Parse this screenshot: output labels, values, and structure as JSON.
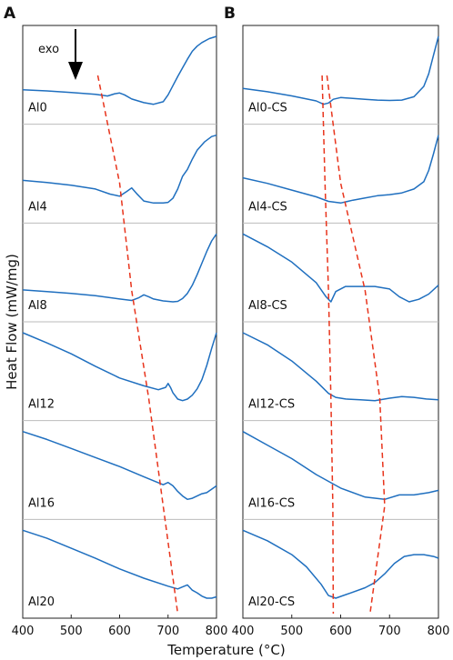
{
  "chart_data": [
    {
      "panel": "A",
      "type": "line",
      "xlabel": "Temperature (°C)",
      "ylabel": "Heat Flow (mW/mg)",
      "xlim": [
        400,
        800
      ],
      "xticks": [
        "400",
        "500",
        "600",
        "700",
        "800"
      ],
      "annotation": {
        "text": "exo",
        "arrow": "down"
      },
      "series": [
        {
          "name": "Al0",
          "x": [
            400,
            450,
            500,
            550,
            575,
            590,
            600,
            610,
            625,
            650,
            670,
            690,
            700,
            710,
            720,
            730,
            740,
            750,
            760,
            770,
            785,
            800
          ],
          "y": [
            0.72,
            0.67,
            0.6,
            0.52,
            0.45,
            0.55,
            0.58,
            0.5,
            0.32,
            0.16,
            0.09,
            0.2,
            0.5,
            0.9,
            1.3,
            1.68,
            2.05,
            2.4,
            2.62,
            2.78,
            2.95,
            3.05
          ]
        },
        {
          "name": "Al4",
          "x": [
            400,
            450,
            500,
            550,
            580,
            600,
            615,
            625,
            635,
            650,
            670,
            690,
            700,
            710,
            720,
            730,
            740,
            750,
            760,
            775,
            790,
            800
          ],
          "y": [
            0.7,
            0.64,
            0.56,
            0.45,
            0.3,
            0.24,
            0.38,
            0.48,
            0.32,
            0.1,
            0.04,
            0.04,
            0.06,
            0.18,
            0.45,
            0.82,
            1.02,
            1.32,
            1.58,
            1.82,
            1.98,
            2.02
          ]
        },
        {
          "name": "Al8",
          "x": [
            400,
            450,
            500,
            550,
            600,
            625,
            640,
            650,
            660,
            670,
            690,
            710,
            720,
            730,
            740,
            750,
            760,
            770,
            780,
            790,
            800
          ],
          "y": [
            0.55,
            0.48,
            0.4,
            0.3,
            0.16,
            0.1,
            0.22,
            0.34,
            0.26,
            0.16,
            0.08,
            0.04,
            0.06,
            0.18,
            0.4,
            0.75,
            1.2,
            1.7,
            2.2,
            2.65,
            2.95
          ]
        },
        {
          "name": "Al12",
          "x": [
            400,
            450,
            500,
            550,
            600,
            650,
            680,
            695,
            700,
            705,
            710,
            720,
            730,
            740,
            750,
            760,
            770,
            780,
            790,
            800
          ],
          "y": [
            0.75,
            0.62,
            0.48,
            0.32,
            0.17,
            0.07,
            0.02,
            0.05,
            0.1,
            0.05,
            -0.02,
            -0.1,
            -0.12,
            -0.1,
            -0.05,
            0.03,
            0.15,
            0.33,
            0.55,
            0.75
          ]
        },
        {
          "name": "Al16",
          "x": [
            400,
            450,
            500,
            550,
            600,
            650,
            690,
            700,
            710,
            720,
            730,
            740,
            750,
            760,
            770,
            780,
            790,
            800
          ],
          "y": [
            0.55,
            0.48,
            0.4,
            0.32,
            0.24,
            0.15,
            0.08,
            0.1,
            0.07,
            0.02,
            -0.02,
            -0.05,
            -0.04,
            -0.02,
            0.0,
            0.01,
            0.04,
            0.07
          ]
        },
        {
          "name": "Al20",
          "x": [
            400,
            450,
            500,
            550,
            600,
            650,
            700,
            720,
            730,
            740,
            750,
            760,
            770,
            780,
            790,
            800
          ],
          "y": [
            1.0,
            0.88,
            0.73,
            0.58,
            0.42,
            0.28,
            0.16,
            0.12,
            0.15,
            0.18,
            0.1,
            0.06,
            0.01,
            -0.02,
            -0.02,
            0.0
          ]
        }
      ],
      "guide_lines": [
        {
          "style": "dashed",
          "color": "#e8341c",
          "x": [
            555,
            600,
            625,
            660,
            690,
            720
          ]
        },
        {
          "comment": "",
          "y_panels": [
            0,
            1,
            2,
            3,
            4,
            5
          ]
        }
      ]
    },
    {
      "panel": "B",
      "type": "line",
      "xlabel": "Temperature (°C)",
      "ylabel": "",
      "xlim": [
        400,
        800
      ],
      "xticks": [
        "400",
        "500",
        "600",
        "700",
        "800"
      ],
      "series": [
        {
          "name": "Al0-CS",
          "x": [
            400,
            450,
            500,
            550,
            565,
            575,
            585,
            600,
            625,
            650,
            675,
            700,
            725,
            750,
            770,
            780,
            790,
            800
          ],
          "y": [
            0.5,
            0.42,
            0.32,
            0.2,
            0.12,
            0.15,
            0.24,
            0.28,
            0.26,
            0.24,
            0.22,
            0.21,
            0.22,
            0.3,
            0.55,
            0.85,
            1.3,
            1.75
          ]
        },
        {
          "name": "Al4-CS",
          "x": [
            400,
            450,
            500,
            550,
            575,
            600,
            625,
            650,
            675,
            700,
            725,
            750,
            770,
            780,
            790,
            800
          ],
          "y": [
            0.62,
            0.52,
            0.4,
            0.28,
            0.2,
            0.17,
            0.22,
            0.26,
            0.3,
            0.32,
            0.35,
            0.42,
            0.55,
            0.75,
            1.05,
            1.38
          ]
        },
        {
          "name": "Al8-CS",
          "x": [
            400,
            450,
            500,
            550,
            570,
            580,
            590,
            610,
            640,
            670,
            700,
            720,
            740,
            760,
            780,
            800
          ],
          "y": [
            0.55,
            0.45,
            0.33,
            0.17,
            0.06,
            0.02,
            0.1,
            0.14,
            0.14,
            0.14,
            0.12,
            0.06,
            0.02,
            0.04,
            0.08,
            0.15
          ]
        },
        {
          "name": "Al12-CS",
          "x": [
            400,
            450,
            500,
            550,
            575,
            590,
            610,
            640,
            670,
            700,
            725,
            750,
            775,
            800
          ],
          "y": [
            0.85,
            0.7,
            0.5,
            0.25,
            0.1,
            0.05,
            0.03,
            0.02,
            0.01,
            0.04,
            0.06,
            0.05,
            0.03,
            0.02
          ]
        },
        {
          "name": "Al16-CS",
          "x": [
            400,
            450,
            500,
            550,
            600,
            650,
            690,
            720,
            750,
            780,
            800
          ],
          "y": [
            0.3,
            0.24,
            0.18,
            0.11,
            0.05,
            0.01,
            0.0,
            0.02,
            0.02,
            0.03,
            0.04
          ]
        },
        {
          "name": "Al20-CS",
          "x": [
            400,
            450,
            500,
            530,
            560,
            575,
            590,
            620,
            650,
            670,
            690,
            710,
            730,
            750,
            770,
            790,
            800
          ],
          "y": [
            0.8,
            0.68,
            0.52,
            0.38,
            0.18,
            0.05,
            0.02,
            0.08,
            0.14,
            0.2,
            0.3,
            0.42,
            0.5,
            0.52,
            0.52,
            0.5,
            0.48
          ]
        }
      ],
      "guide_lines": [
        {
          "style": "dashed",
          "color": "#e8341c",
          "x": [
            562,
            568,
            575,
            580,
            584,
            585
          ]
        },
        {
          "style": "dashed",
          "color": "#e8341c",
          "x": [
            572,
            600,
            650,
            680,
            690,
            660
          ]
        }
      ]
    }
  ],
  "colors": {
    "trace": "#1f6fbf",
    "guide": "#e8341c",
    "frame": "#222222",
    "divider": "#bbbbbb"
  }
}
